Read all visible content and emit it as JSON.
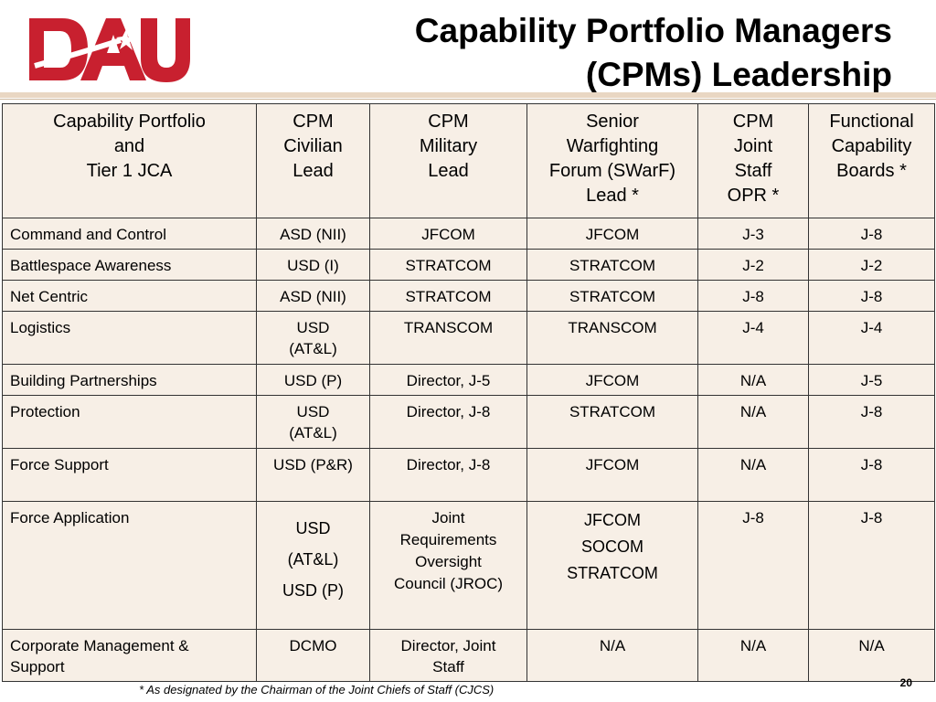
{
  "logo": {
    "text": "DAU",
    "color": "#c8202f"
  },
  "title": {
    "line1": "Capability Portfolio Managers",
    "line2": "(CPMs) Leadership"
  },
  "table": {
    "headers": [
      [
        "Capability Portfolio",
        "and",
        "Tier 1 JCA"
      ],
      [
        "CPM",
        "Civilian",
        "Lead"
      ],
      [
        "CPM",
        "Military",
        "Lead"
      ],
      [
        "Senior",
        "Warfighting",
        "Forum (SWarF)",
        "Lead *"
      ],
      [
        "CPM",
        "Joint",
        "Staff",
        "OPR *"
      ],
      [
        "Functional",
        "Capability",
        "Boards *"
      ]
    ],
    "rows": [
      [
        [
          "Command  and Control"
        ],
        [
          "ASD (NII)"
        ],
        [
          "JFCOM"
        ],
        [
          "JFCOM"
        ],
        [
          "J-3"
        ],
        [
          "J-8"
        ]
      ],
      [
        [
          "Battlespace Awareness"
        ],
        [
          "USD (I)"
        ],
        [
          "STRATCOM"
        ],
        [
          "STRATCOM"
        ],
        [
          "J-2"
        ],
        [
          "J-2"
        ]
      ],
      [
        [
          "Net Centric"
        ],
        [
          "ASD (NII)"
        ],
        [
          "STRATCOM"
        ],
        [
          "STRATCOM"
        ],
        [
          "J-8"
        ],
        [
          "J-8"
        ]
      ],
      [
        [
          "Logistics"
        ],
        [
          "USD",
          "(AT&L)"
        ],
        [
          "TRANSCOM"
        ],
        [
          "TRANSCOM"
        ],
        [
          "J-4"
        ],
        [
          "J-4"
        ]
      ],
      [
        [
          "Building Partnerships"
        ],
        [
          "USD (P)"
        ],
        [
          "Director, J-5"
        ],
        [
          "JFCOM"
        ],
        [
          "N/A"
        ],
        [
          "J-5"
        ]
      ],
      [
        [
          "Protection"
        ],
        [
          "USD",
          "(AT&L)"
        ],
        [
          "Director, J-8"
        ],
        [
          "STRATCOM"
        ],
        [
          "N/A"
        ],
        [
          "J-8"
        ]
      ],
      [
        [
          "Force Support"
        ],
        [
          "USD (P&R)"
        ],
        [
          "Director, J-8"
        ],
        [
          "JFCOM"
        ],
        [
          "N/A"
        ],
        [
          "J-8"
        ]
      ],
      [
        [
          "Force Application"
        ],
        [
          "USD",
          "(AT&L)",
          "USD (P)"
        ],
        [
          "Joint",
          "Requirements",
          "Oversight",
          "Council (JROC)"
        ],
        [
          "JFCOM",
          "SOCOM",
          "STRATCOM"
        ],
        [
          "J-8"
        ],
        [
          "J-8"
        ]
      ],
      [
        [
          "Corporate Management &",
          "Support"
        ],
        [
          "DCMO"
        ],
        [
          "Director, Joint",
          "Staff"
        ],
        [
          "N/A"
        ],
        [
          "N/A"
        ],
        [
          "N/A"
        ]
      ]
    ]
  },
  "footnote": "* As designated by the Chairman of the Joint Chiefs of Staff (CJCS)",
  "page_number": "20"
}
